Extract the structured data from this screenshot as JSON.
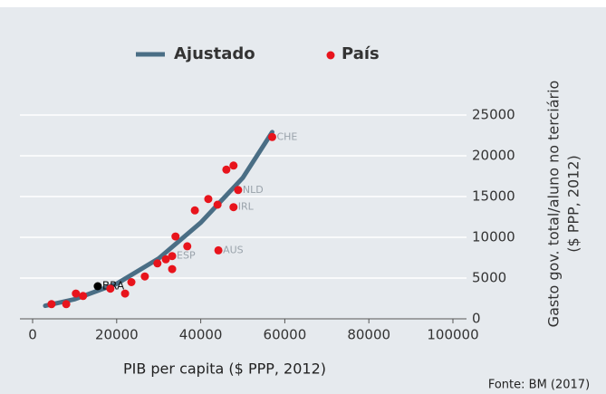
{
  "chart_data": {
    "type": "scatter",
    "xlabel": "PIB per capita ($ PPP, 2012)",
    "ylabel": [
      "Gasto gov. total/aluno no terciário",
      "($ PPP, 2012)"
    ],
    "source": "Fonte: BM (2017)",
    "xlim": [
      0,
      100000
    ],
    "ylim": [
      0,
      25000
    ],
    "xticks": [
      0,
      20000,
      40000,
      60000,
      80000,
      100000
    ],
    "yticks": [
      0,
      5000,
      10000,
      15000,
      20000,
      25000
    ],
    "grid": true,
    "legend": "top",
    "fit": {
      "name": "Ajustado",
      "color": "#4a6e85",
      "x": [
        3000,
        10000,
        20000,
        30000,
        40000,
        50000,
        57000
      ],
      "values": [
        1600,
        2400,
        4300,
        7400,
        11800,
        17300,
        22900
      ]
    },
    "series": [
      {
        "name": "País",
        "color": "#e8141c",
        "x": [
          4500,
          8000,
          10300,
          12000,
          15500,
          18500,
          22000,
          23500,
          26700,
          29700,
          31700,
          33200,
          33200,
          34000,
          36800,
          38600,
          41800,
          44000,
          44200,
          46100,
          47800,
          48900,
          47800,
          57000
        ],
        "values": [
          1800,
          1800,
          3100,
          2800,
          4000,
          3700,
          3100,
          4500,
          5200,
          6800,
          7300,
          7700,
          6100,
          10100,
          8900,
          13300,
          14700,
          14000,
          8400,
          18300,
          18800,
          15800,
          13700,
          22300
        ],
        "point_colors": [
          "#e8141c",
          "#e8141c",
          "#e8141c",
          "#e8141c",
          "#000000",
          "#e8141c",
          "#e8141c",
          "#e8141c",
          "#e8141c",
          "#e8141c",
          "#e8141c",
          "#e8141c",
          "#e8141c",
          "#e8141c",
          "#e8141c",
          "#e8141c",
          "#e8141c",
          "#e8141c",
          "#e8141c",
          "#e8141c",
          "#e8141c",
          "#e8141c",
          "#e8141c",
          "#e8141c"
        ],
        "labels": [
          null,
          null,
          null,
          null,
          "BRA",
          null,
          null,
          null,
          null,
          null,
          null,
          "ESP",
          null,
          null,
          null,
          null,
          null,
          null,
          "AUS",
          null,
          null,
          "NLD",
          "IRL",
          "CHE"
        ]
      }
    ]
  }
}
